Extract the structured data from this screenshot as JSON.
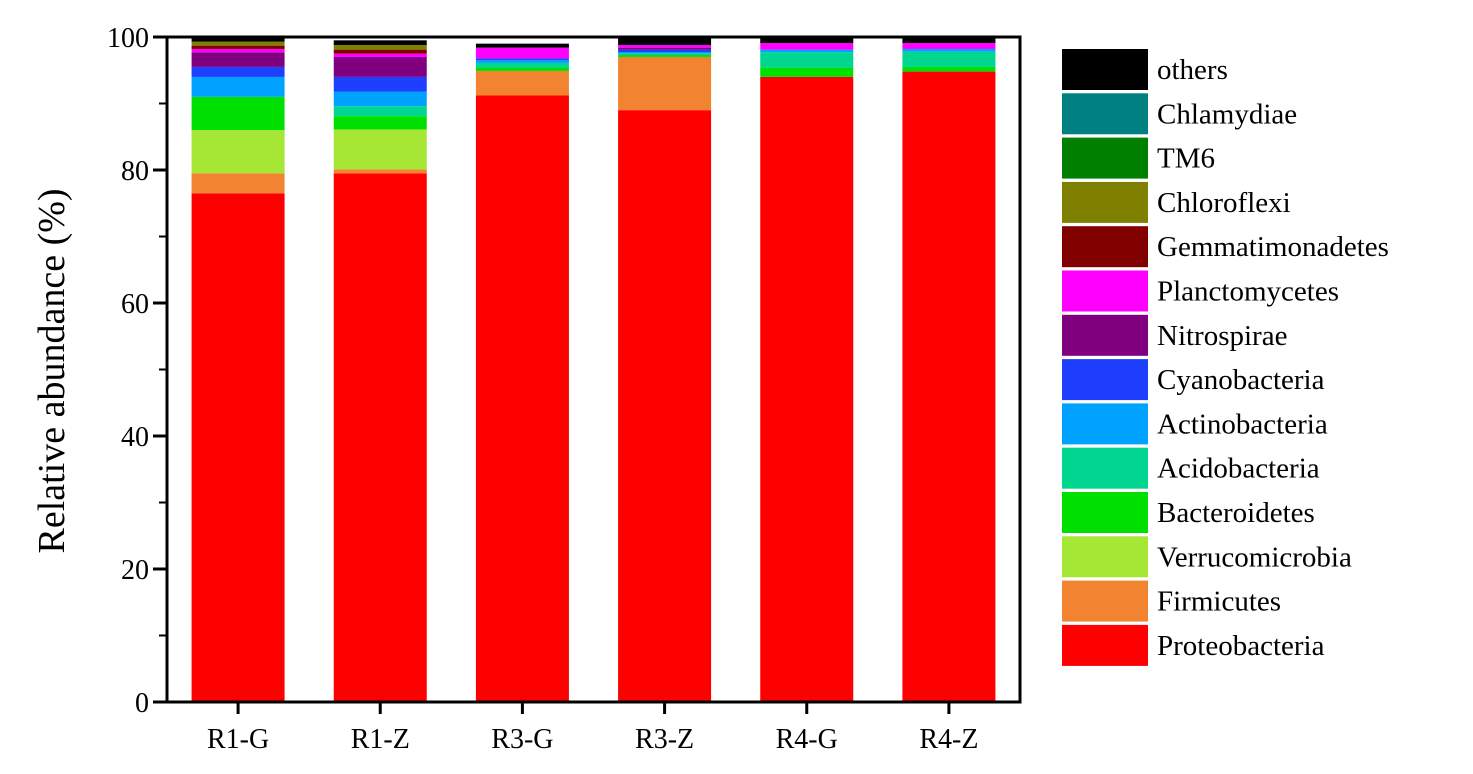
{
  "chart_data": {
    "type": "bar",
    "stacked": true,
    "ylabel": "Relative abundance (%)",
    "xlabel": "",
    "ylim": [
      0,
      100
    ],
    "yticks": [
      0,
      20,
      40,
      60,
      80,
      100
    ],
    "legend_position": "right",
    "categories": [
      "R1-G",
      "R1-Z",
      "R3-G",
      "R3-Z",
      "R4-G",
      "R4-Z"
    ],
    "series": [
      {
        "name": "Proteobacteria",
        "color": "#ff0000",
        "values": [
          76.5,
          79.5,
          91.2,
          89.0,
          94.0,
          94.8
        ]
      },
      {
        "name": "Firmicutes",
        "color": "#f28331",
        "values": [
          3.0,
          0.6,
          3.7,
          8.0,
          0.0,
          0.0
        ]
      },
      {
        "name": "Verrucomicrobia",
        "color": "#a6e635",
        "values": [
          6.5,
          6.0,
          0.0,
          0.0,
          0.0,
          0.0
        ]
      },
      {
        "name": "Bacteroidetes",
        "color": "#00e000",
        "values": [
          5.0,
          2.0,
          0.5,
          0.3,
          1.4,
          0.7
        ]
      },
      {
        "name": "Acidobacteria",
        "color": "#00d68f",
        "values": [
          0.0,
          1.5,
          0.7,
          0.2,
          2.3,
          2.3
        ]
      },
      {
        "name": "Actinobacteria",
        "color": "#00a2ff",
        "values": [
          3.0,
          2.2,
          0.4,
          0.2,
          0.4,
          0.4
        ]
      },
      {
        "name": "Cyanobacteria",
        "color": "#1f3fff",
        "values": [
          1.5,
          2.2,
          0.3,
          0.4,
          0.0,
          0.0
        ]
      },
      {
        "name": "Nitrospirae",
        "color": "#800080",
        "values": [
          2.2,
          3.0,
          0.0,
          0.3,
          0.0,
          0.0
        ]
      },
      {
        "name": "Planctomycetes",
        "color": "#ff00ff",
        "values": [
          0.5,
          0.5,
          1.6,
          0.4,
          1.0,
          0.9
        ]
      },
      {
        "name": "Gemmatimonadetes",
        "color": "#800000",
        "values": [
          0.5,
          0.6,
          0.0,
          0.0,
          0.0,
          0.0
        ]
      },
      {
        "name": "Chloroflexi",
        "color": "#808000",
        "values": [
          0.6,
          0.7,
          0.0,
          0.0,
          0.0,
          0.0
        ]
      },
      {
        "name": "TM6",
        "color": "#008000",
        "values": [
          0.0,
          0.0,
          0.0,
          0.0,
          0.0,
          0.0
        ]
      },
      {
        "name": "Chlamydiae",
        "color": "#008080",
        "values": [
          0.0,
          0.0,
          0.0,
          0.0,
          0.0,
          0.0
        ]
      },
      {
        "name": "others",
        "color": "#000000",
        "values": [
          0.7,
          0.7,
          0.6,
          1.2,
          0.9,
          0.9
        ]
      }
    ]
  }
}
